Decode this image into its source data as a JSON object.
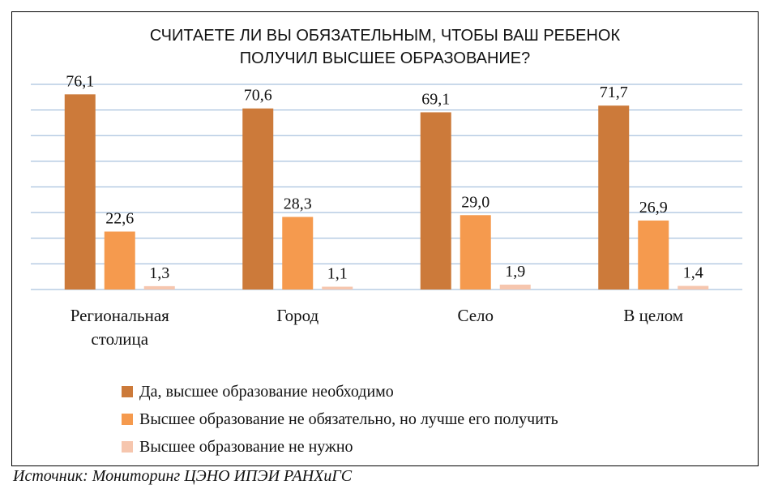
{
  "chart_data": {
    "type": "bar",
    "title_lines": [
      "СЧИТАЕТЕ ЛИ ВЫ ОБЯЗАТЕЛЬНЫМ, ЧТОБЫ ВАШ РЕБЕНОК",
      "ПОЛУЧИЛ ВЫСШЕЕ ОБРАЗОВАНИЕ?"
    ],
    "categories": [
      [
        "Региональная",
        "столица"
      ],
      [
        "Город"
      ],
      [
        "Село"
      ],
      [
        "В целом"
      ]
    ],
    "series": [
      {
        "name": "Да, высшее образование необходимо",
        "values": [
          76.1,
          70.6,
          69.1,
          71.7
        ],
        "labels": [
          "76,1",
          "70,6",
          "69,1",
          "71,7"
        ],
        "color": "#CC7A3A"
      },
      {
        "name": "Высшее образование не обязательно, но лучше его получить",
        "values": [
          22.6,
          28.3,
          29.0,
          26.9
        ],
        "labels": [
          "22,6",
          "28,3",
          "29,0",
          "26,9"
        ],
        "color": "#F59A4E"
      },
      {
        "name": "Высшее образование не нужно",
        "values": [
          1.3,
          1.1,
          1.9,
          1.4
        ],
        "labels": [
          "1,3",
          "1,1",
          "1,9",
          "1,4"
        ],
        "color": "#F6C6AE"
      }
    ],
    "ylim": [
      0,
      80
    ],
    "grid": true,
    "legend_position": "bottom",
    "gridline_color": "#A9C2DE"
  },
  "source": "Источник: Мониторинг ЦЭНО ИПЭИ РАНХиГС"
}
